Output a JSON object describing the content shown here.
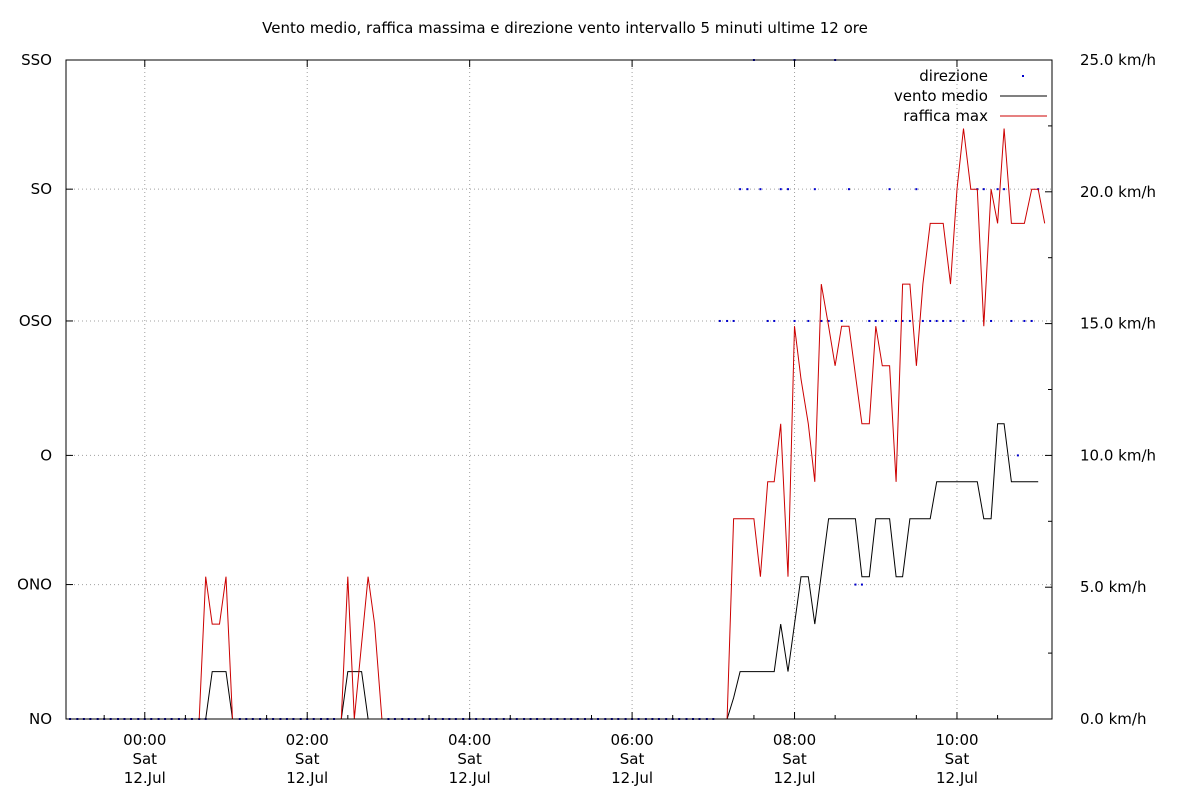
{
  "chart_data": {
    "type": "line",
    "title": "Vento medio, raffica massima e direzione vento intervallo 5 minuti ultime 12 ore",
    "xlabel": "",
    "ylabel": "",
    "x_unit": "hours (Sat 12 Jul)",
    "xlim": [
      -0.97,
      11.17
    ],
    "ylim": [
      0,
      25
    ],
    "y_axis_left": {
      "ticks": [
        {
          "label": "NO",
          "value": 0
        },
        {
          "label": "ONO",
          "value": 5.1
        },
        {
          "label": "O",
          "value": 10
        },
        {
          "label": "OSO",
          "value": 15.1
        },
        {
          "label": "SO",
          "value": 20.1
        },
        {
          "label": "SSO",
          "value": 25
        }
      ]
    },
    "y_axis_right": {
      "ticks": [
        {
          "label": "0.0 km/h",
          "value": 0
        },
        {
          "label": "5.0 km/h",
          "value": 5
        },
        {
          "label": "10.0 km/h",
          "value": 10
        },
        {
          "label": "15.0 km/h",
          "value": 15
        },
        {
          "label": "20.0 km/h",
          "value": 20
        },
        {
          "label": "25.0 km/h",
          "value": 25
        }
      ]
    },
    "x_ticks": [
      {
        "x": 0,
        "time": "00:00",
        "day": "Sat",
        "date": "12.Jul"
      },
      {
        "x": 2,
        "time": "02:00",
        "day": "Sat",
        "date": "12.Jul"
      },
      {
        "x": 4,
        "time": "04:00",
        "day": "Sat",
        "date": "12.Jul"
      },
      {
        "x": 6,
        "time": "06:00",
        "day": "Sat",
        "date": "12.Jul"
      },
      {
        "x": 8,
        "time": "08:00",
        "day": "Sat",
        "date": "12.Jul"
      },
      {
        "x": 10,
        "time": "10:00",
        "day": "Sat",
        "date": "12.Jul"
      }
    ],
    "grid": true,
    "legend_position": "top-right",
    "series": [
      {
        "name": "direzione",
        "style": "points",
        "color": "#0000cc",
        "points": [
          [
            -0.92,
            0
          ],
          [
            -0.83,
            0
          ],
          [
            -0.75,
            0
          ],
          [
            -0.67,
            0
          ],
          [
            -0.58,
            0
          ],
          [
            -0.5,
            0
          ],
          [
            -0.42,
            0
          ],
          [
            -0.33,
            0
          ],
          [
            -0.25,
            0
          ],
          [
            -0.17,
            0
          ],
          [
            -0.08,
            0
          ],
          [
            0,
            0
          ],
          [
            0.08,
            0
          ],
          [
            0.17,
            0
          ],
          [
            0.25,
            0
          ],
          [
            0.33,
            0
          ],
          [
            0.42,
            0
          ],
          [
            0.5,
            0
          ],
          [
            0.58,
            0
          ],
          [
            0.67,
            0
          ],
          [
            0.75,
            0
          ],
          [
            1.17,
            0
          ],
          [
            1.25,
            0
          ],
          [
            1.33,
            0
          ],
          [
            1.42,
            0
          ],
          [
            1.5,
            0
          ],
          [
            1.58,
            0
          ],
          [
            1.67,
            0
          ],
          [
            1.75,
            0
          ],
          [
            1.83,
            0
          ],
          [
            1.92,
            0
          ],
          [
            2.0,
            0
          ],
          [
            2.08,
            0
          ],
          [
            2.17,
            0
          ],
          [
            2.25,
            0
          ],
          [
            2.33,
            0
          ],
          [
            3.0,
            0
          ],
          [
            3.08,
            0
          ],
          [
            3.17,
            0
          ],
          [
            3.25,
            0
          ],
          [
            3.33,
            0
          ],
          [
            3.42,
            0
          ],
          [
            3.5,
            0
          ],
          [
            3.58,
            0
          ],
          [
            3.67,
            0
          ],
          [
            3.75,
            0
          ],
          [
            3.83,
            0
          ],
          [
            3.92,
            0
          ],
          [
            4.0,
            0
          ],
          [
            4.08,
            0
          ],
          [
            4.17,
            0
          ],
          [
            4.25,
            0
          ],
          [
            4.33,
            0
          ],
          [
            4.42,
            0
          ],
          [
            4.5,
            0
          ],
          [
            4.58,
            0
          ],
          [
            4.67,
            0
          ],
          [
            4.75,
            0
          ],
          [
            4.83,
            0
          ],
          [
            4.92,
            0
          ],
          [
            5.0,
            0
          ],
          [
            5.08,
            0
          ],
          [
            5.17,
            0
          ],
          [
            5.25,
            0
          ],
          [
            5.33,
            0
          ],
          [
            5.42,
            0
          ],
          [
            5.5,
            0
          ],
          [
            5.58,
            0
          ],
          [
            5.67,
            0
          ],
          [
            5.75,
            0
          ],
          [
            5.83,
            0
          ],
          [
            5.92,
            0
          ],
          [
            6.0,
            0
          ],
          [
            6.08,
            0
          ],
          [
            6.17,
            0
          ],
          [
            6.25,
            0
          ],
          [
            6.33,
            0
          ],
          [
            6.42,
            0
          ],
          [
            6.5,
            0
          ],
          [
            6.58,
            0
          ],
          [
            6.67,
            0
          ],
          [
            6.75,
            0
          ],
          [
            6.83,
            0
          ],
          [
            6.92,
            0
          ],
          [
            7.0,
            0
          ],
          [
            7.08,
            15.1
          ],
          [
            7.17,
            15.1
          ],
          [
            7.25,
            15.1
          ],
          [
            7.33,
            20.1
          ],
          [
            7.42,
            20.1
          ],
          [
            7.58,
            20.1
          ],
          [
            7.83,
            20.1
          ],
          [
            7.92,
            20.1
          ],
          [
            8.25,
            20.1
          ],
          [
            8.67,
            20.1
          ],
          [
            9.17,
            20.1
          ],
          [
            9.5,
            20.1
          ],
          [
            7.67,
            15.1
          ],
          [
            7.75,
            15.1
          ],
          [
            8.0,
            15.1
          ],
          [
            8.17,
            15.1
          ],
          [
            8.33,
            15.1
          ],
          [
            8.42,
            15.1
          ],
          [
            8.58,
            15.1
          ],
          [
            8.75,
            5.1
          ],
          [
            8.83,
            5.1
          ],
          [
            8.92,
            15.1
          ],
          [
            9.0,
            15.1
          ],
          [
            9.08,
            15.1
          ],
          [
            9.25,
            15.1
          ],
          [
            9.33,
            15.1
          ],
          [
            9.42,
            15.1
          ],
          [
            9.58,
            15.1
          ],
          [
            9.67,
            15.1
          ],
          [
            9.75,
            15.1
          ],
          [
            9.83,
            15.1
          ],
          [
            9.92,
            15.1
          ],
          [
            10.08,
            15.1
          ],
          [
            10.25,
            20.1
          ],
          [
            10.33,
            20.1
          ],
          [
            10.42,
            15.1
          ],
          [
            10.5,
            20.1
          ],
          [
            10.58,
            20.1
          ],
          [
            10.67,
            15.1
          ],
          [
            10.75,
            10
          ],
          [
            10.83,
            15.1
          ],
          [
            10.92,
            15.1
          ],
          [
            11.0,
            20.1
          ],
          [
            7.5,
            25
          ],
          [
            8.0,
            25
          ],
          [
            8.5,
            25
          ]
        ]
      },
      {
        "name": "vento medio",
        "style": "line",
        "color": "#000000",
        "points": [
          [
            -0.97,
            0
          ],
          [
            0.75,
            0
          ],
          [
            0.83,
            1.8
          ],
          [
            1.0,
            1.8
          ],
          [
            1.08,
            0
          ],
          [
            2.42,
            0
          ],
          [
            2.5,
            1.8
          ],
          [
            2.67,
            1.8
          ],
          [
            2.75,
            0
          ],
          [
            7.17,
            0
          ],
          [
            7.25,
            0.8
          ],
          [
            7.33,
            1.8
          ],
          [
            7.75,
            1.8
          ],
          [
            7.83,
            3.6
          ],
          [
            7.92,
            1.8
          ],
          [
            8.08,
            5.4
          ],
          [
            8.17,
            5.4
          ],
          [
            8.25,
            3.6
          ],
          [
            8.42,
            7.6
          ],
          [
            8.5,
            7.6
          ],
          [
            8.58,
            7.6
          ],
          [
            8.67,
            7.6
          ],
          [
            8.75,
            7.6
          ],
          [
            8.83,
            5.4
          ],
          [
            8.92,
            5.4
          ],
          [
            9.0,
            7.6
          ],
          [
            9.17,
            7.6
          ],
          [
            9.25,
            5.4
          ],
          [
            9.33,
            5.4
          ],
          [
            9.42,
            7.6
          ],
          [
            9.67,
            7.6
          ],
          [
            9.75,
            9.0
          ],
          [
            9.92,
            9.0
          ],
          [
            10.08,
            9.0
          ],
          [
            10.25,
            9.0
          ],
          [
            10.33,
            7.6
          ],
          [
            10.42,
            7.6
          ],
          [
            10.5,
            11.2
          ],
          [
            10.58,
            11.2
          ],
          [
            10.67,
            9.0
          ],
          [
            11.0,
            9.0
          ]
        ]
      },
      {
        "name": "raffica max",
        "style": "line",
        "color": "#cc0000",
        "points": [
          [
            -0.97,
            0
          ],
          [
            0.67,
            0
          ],
          [
            0.75,
            5.4
          ],
          [
            0.83,
            3.6
          ],
          [
            0.92,
            3.6
          ],
          [
            1.0,
            5.4
          ],
          [
            1.08,
            0
          ],
          [
            2.42,
            0
          ],
          [
            2.5,
            5.4
          ],
          [
            2.58,
            0
          ],
          [
            2.75,
            5.4
          ],
          [
            2.83,
            3.6
          ],
          [
            2.92,
            0
          ],
          [
            7.17,
            0
          ],
          [
            7.25,
            7.6
          ],
          [
            7.5,
            7.6
          ],
          [
            7.58,
            5.4
          ],
          [
            7.67,
            9.0
          ],
          [
            7.75,
            9.0
          ],
          [
            7.83,
            11.2
          ],
          [
            7.92,
            5.4
          ],
          [
            8.0,
            14.9
          ],
          [
            8.08,
            12.9
          ],
          [
            8.17,
            11.2
          ],
          [
            8.25,
            9.0
          ],
          [
            8.33,
            16.5
          ],
          [
            8.42,
            14.9
          ],
          [
            8.5,
            13.4
          ],
          [
            8.58,
            14.9
          ],
          [
            8.67,
            14.9
          ],
          [
            8.83,
            11.2
          ],
          [
            8.92,
            11.2
          ],
          [
            9.0,
            14.9
          ],
          [
            9.08,
            13.4
          ],
          [
            9.17,
            13.4
          ],
          [
            9.25,
            9.0
          ],
          [
            9.33,
            16.5
          ],
          [
            9.42,
            16.5
          ],
          [
            9.5,
            13.4
          ],
          [
            9.58,
            16.5
          ],
          [
            9.67,
            18.8
          ],
          [
            9.83,
            18.8
          ],
          [
            9.92,
            16.5
          ],
          [
            10.0,
            20.1
          ],
          [
            10.08,
            22.4
          ],
          [
            10.17,
            20.1
          ],
          [
            10.25,
            20.1
          ],
          [
            10.33,
            14.9
          ],
          [
            10.42,
            20.1
          ],
          [
            10.5,
            18.8
          ],
          [
            10.58,
            22.4
          ],
          [
            10.67,
            18.8
          ],
          [
            10.83,
            18.8
          ],
          [
            10.92,
            20.1
          ],
          [
            11.0,
            20.1
          ],
          [
            11.08,
            18.8
          ]
        ]
      }
    ]
  }
}
